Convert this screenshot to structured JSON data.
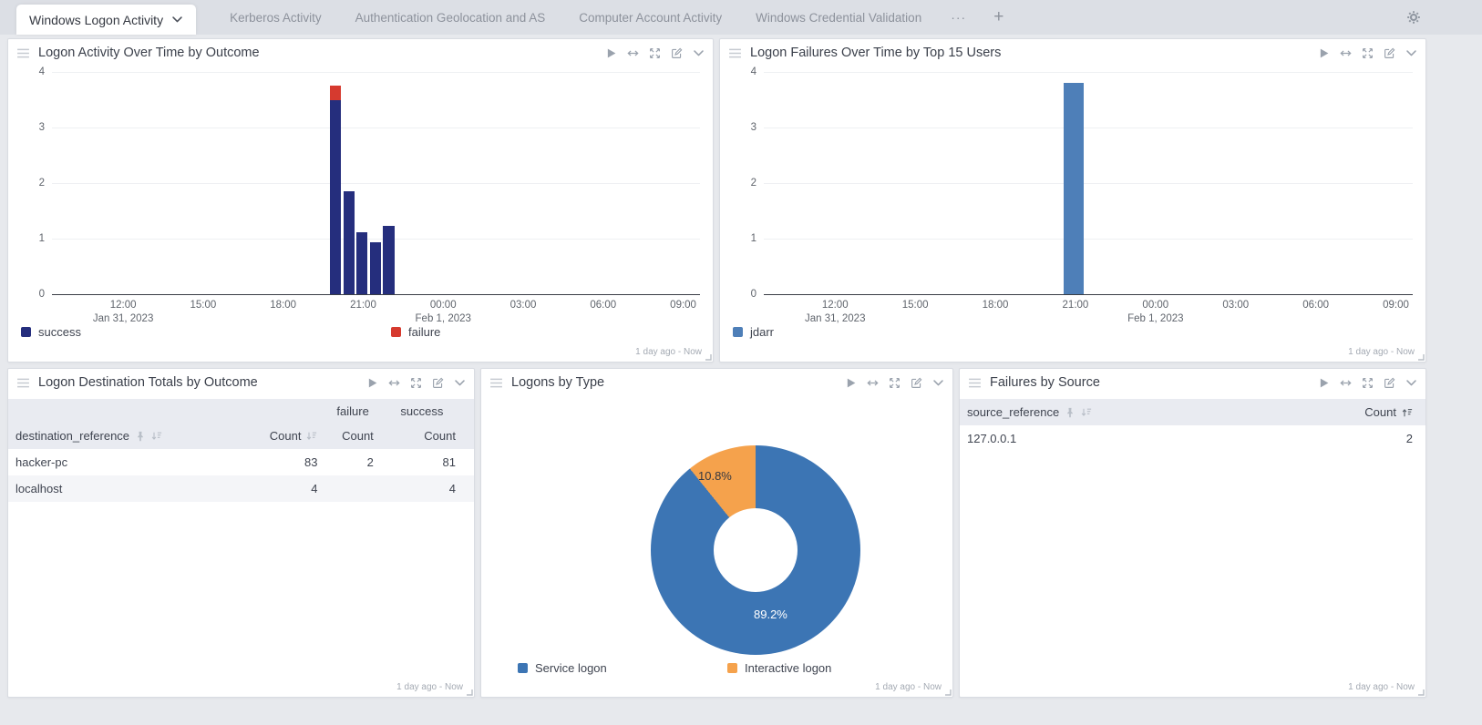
{
  "tabbar": {
    "active_tab": "Windows Logon Activity",
    "tabs": [
      "Kerberos Activity",
      "Authentication Geolocation and AS",
      "Computer Account Activity",
      "Windows Credential Validation"
    ],
    "overflow_label": "···",
    "add_label": "+",
    "icons": [
      "chevron-down-icon",
      "gear-icon"
    ]
  },
  "time_range_badge": "1 day ago - Now",
  "panel_action_icons": [
    "play-icon",
    "expand-horizontal-icon",
    "fullscreen-icon",
    "edit-icon",
    "chevron-down-icon"
  ],
  "panels": {
    "logon_activity": {
      "title": "Logon Activity Over Time by Outcome"
    },
    "logon_failures": {
      "title": "Logon Failures Over Time by Top 15 Users"
    },
    "destination_totals": {
      "title": "Logon Destination Totals by Outcome"
    },
    "logons_by_type": {
      "title": "Logons by Type"
    },
    "failures_by_source": {
      "title": "Failures by Source"
    }
  },
  "chart_data": [
    {
      "id": "logon-activity-over-time",
      "type": "bar",
      "stacked": true,
      "title": "Logon Activity Over Time by Outcome",
      "x_axis": {
        "start_hour": 9.33,
        "end_hour": 33.63,
        "ticks": [
          {
            "hour": 12,
            "label": "12:00",
            "sublabel": "Jan 31, 2023"
          },
          {
            "hour": 15,
            "label": "15:00"
          },
          {
            "hour": 18,
            "label": "18:00"
          },
          {
            "hour": 21,
            "label": "21:00"
          },
          {
            "hour": 24,
            "label": "00:00",
            "sublabel": "Feb 1, 2023"
          },
          {
            "hour": 27,
            "label": "03:00"
          },
          {
            "hour": 30,
            "label": "06:00"
          },
          {
            "hour": 33,
            "label": "09:00"
          }
        ]
      },
      "y_axis": {
        "min": 0,
        "max": 4,
        "ticks": [
          4,
          3,
          2,
          1,
          0
        ]
      },
      "bar_width_hours": 0.42,
      "bar_start_hours": [
        19.75,
        20.25,
        20.75,
        21.25,
        21.75
      ],
      "series": [
        {
          "name": "success",
          "color": "#252e7d",
          "values": [
            3.5,
            1.85,
            1.12,
            0.93,
            1.23
          ]
        },
        {
          "name": "failure",
          "color": "#d63a2f",
          "values": [
            0.25,
            0,
            0,
            0,
            0
          ]
        }
      ],
      "legend_position": "bottom",
      "grid": true
    },
    {
      "id": "logon-failures-over-time",
      "type": "bar",
      "stacked": false,
      "title": "Logon Failures Over Time by Top 15 Users",
      "x_axis": {
        "start_hour": 9.33,
        "end_hour": 33.63,
        "ticks": [
          {
            "hour": 12,
            "label": "12:00",
            "sublabel": "Jan 31, 2023"
          },
          {
            "hour": 15,
            "label": "15:00"
          },
          {
            "hour": 18,
            "label": "18:00"
          },
          {
            "hour": 21,
            "label": "21:00"
          },
          {
            "hour": 24,
            "label": "00:00",
            "sublabel": "Feb 1, 2023"
          },
          {
            "hour": 27,
            "label": "03:00"
          },
          {
            "hour": 30,
            "label": "06:00"
          },
          {
            "hour": 33,
            "label": "09:00"
          }
        ]
      },
      "y_axis": {
        "min": 0,
        "max": 4,
        "ticks": [
          4,
          3,
          2,
          1,
          0
        ]
      },
      "bar_width_hours": 0.75,
      "bar_start_hours": [
        20.55
      ],
      "series": [
        {
          "name": "jdarr",
          "color": "#4e7fb8",
          "values": [
            3.8
          ]
        }
      ],
      "legend_position": "bottom",
      "grid": true
    },
    {
      "id": "logons-by-type",
      "type": "pie",
      "title": "Logons by Type",
      "slices": [
        {
          "name": "Service logon",
          "percent": 89.2,
          "label": "89.2%",
          "color": "#3c75b4"
        },
        {
          "name": "Interactive logon",
          "percent": 10.8,
          "label": "10.8%",
          "color": "#f5a24c"
        }
      ],
      "legend_position": "bottom"
    },
    {
      "id": "logon-destination-totals",
      "type": "table",
      "title": "Logon Destination Totals by Outcome",
      "group_headers": [
        "failure",
        "success"
      ],
      "columns": [
        "destination_reference",
        "Count",
        "Count",
        "Count"
      ],
      "rows": [
        [
          "hacker-pc",
          "83",
          "2",
          "81"
        ],
        [
          "localhost",
          "4",
          "",
          "4"
        ]
      ]
    },
    {
      "id": "failures-by-source",
      "type": "table",
      "title": "Failures by Source",
      "columns": [
        "source_reference",
        "Count"
      ],
      "rows": [
        [
          "127.0.0.1",
          "2"
        ]
      ]
    }
  ]
}
